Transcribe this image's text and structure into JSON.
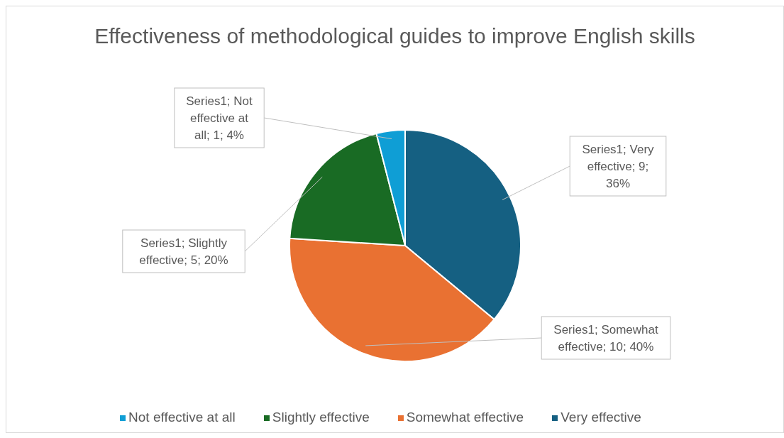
{
  "chart_data": {
    "type": "pie",
    "title": "Effectiveness of methodological guides to improve English skills",
    "categories": [
      "Very effective",
      "Somewhat effective",
      "Slightly effective",
      "Not effective at all"
    ],
    "values": [
      9,
      10,
      5,
      1
    ],
    "colors": [
      "#156082",
      "#e97132",
      "#196b24",
      "#0f9ed5"
    ],
    "value_labels": [
      "Series1; Very effective; 9; 36%",
      "Series1; Somewhat effective; 10; 40%",
      "Series1; Slightly effective; 5; 20%",
      "Series1; Not effective at all; 1; 4%"
    ],
    "legend": "bottom"
  }
}
